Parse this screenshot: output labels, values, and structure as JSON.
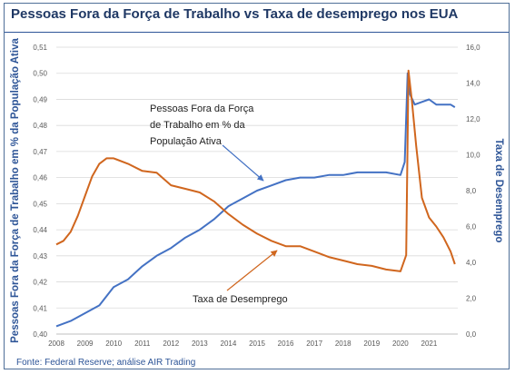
{
  "header": {
    "title": "Pessoas Fora da Força de Trabalho vs Taxa de desemprego nos EUA"
  },
  "footer": {
    "source": "Fonte: Federal Reserve; análise AIR Trading"
  },
  "colors": {
    "lfp_series": "#4472c4",
    "unemployment_series": "#d0661e",
    "title": "#1f3864",
    "axis_title": "#2e5597"
  },
  "chart_data": {
    "type": "line",
    "title": "Pessoas Fora da Força de Trabalho vs Taxa de desemprego nos EUA",
    "xlabel": "",
    "ylabel_left": "Pessoas Fora da Força de Trabalho em % da População Ativa",
    "ylabel_right": "Taxa de Desemprego",
    "xlim": [
      2008.0,
      2022.0
    ],
    "ylim_left": [
      0.4,
      0.51
    ],
    "ylim_right": [
      0.0,
      16.0
    ],
    "x_ticks": [
      "2008",
      "2009",
      "2010",
      "2011",
      "2012",
      "2013",
      "2014",
      "2015",
      "2016",
      "2017",
      "2018",
      "2019",
      "2020",
      "2021"
    ],
    "y_ticks_left": [
      "0,40",
      "0,41",
      "0,42",
      "0,43",
      "0,44",
      "0,45",
      "0,46",
      "0,47",
      "0,48",
      "0,49",
      "0,50",
      "0,51"
    ],
    "y_ticks_right": [
      "0,0",
      "2,0",
      "4,0",
      "6,0",
      "8,0",
      "10,0",
      "12,0",
      "14,0",
      "16,0"
    ],
    "grid": "horizontal",
    "legend": "none",
    "annotations": [
      {
        "text": [
          "Pessoas Fora da Força",
          "de Trabalho em % da",
          "População Ativa"
        ],
        "series": "lfp"
      },
      {
        "text": [
          "Taxa de Desemprego"
        ],
        "series": "unemployment"
      }
    ],
    "series": [
      {
        "id": "lfp",
        "axis": "left",
        "x": [
          2008.0,
          2008.5,
          2009.0,
          2009.5,
          2010.0,
          2010.5,
          2011.0,
          2011.5,
          2012.0,
          2012.5,
          2013.0,
          2013.5,
          2014.0,
          2014.5,
          2015.0,
          2015.5,
          2016.0,
          2016.5,
          2017.0,
          2017.5,
          2018.0,
          2018.5,
          2019.0,
          2019.5,
          2020.0,
          2020.15,
          2020.25,
          2020.33,
          2020.5,
          2020.75,
          2021.0,
          2021.25,
          2021.5,
          2021.75,
          2021.9
        ],
        "values": [
          0.403,
          0.405,
          0.408,
          0.411,
          0.418,
          0.421,
          0.426,
          0.43,
          0.433,
          0.437,
          0.44,
          0.444,
          0.449,
          0.452,
          0.455,
          0.457,
          0.459,
          0.46,
          0.46,
          0.461,
          0.461,
          0.462,
          0.462,
          0.462,
          0.461,
          0.466,
          0.5,
          0.492,
          0.488,
          0.489,
          0.49,
          0.488,
          0.488,
          0.488,
          0.487
        ]
      },
      {
        "id": "unemployment",
        "axis": "right",
        "x": [
          2008.0,
          2008.25,
          2008.5,
          2008.75,
          2009.0,
          2009.25,
          2009.5,
          2009.75,
          2010.0,
          2010.5,
          2011.0,
          2011.5,
          2012.0,
          2012.5,
          2013.0,
          2013.5,
          2014.0,
          2014.5,
          2015.0,
          2015.5,
          2016.0,
          2016.5,
          2017.0,
          2017.5,
          2018.0,
          2018.5,
          2019.0,
          2019.5,
          2020.0,
          2020.2,
          2020.28,
          2020.4,
          2020.55,
          2020.75,
          2021.0,
          2021.25,
          2021.5,
          2021.75,
          2021.9
        ],
        "values": [
          5.0,
          5.2,
          5.7,
          6.6,
          7.7,
          8.8,
          9.5,
          9.8,
          9.8,
          9.5,
          9.1,
          9.0,
          8.3,
          8.1,
          7.9,
          7.4,
          6.7,
          6.1,
          5.6,
          5.2,
          4.9,
          4.9,
          4.6,
          4.3,
          4.1,
          3.9,
          3.8,
          3.6,
          3.5,
          4.4,
          14.7,
          13.0,
          10.5,
          7.6,
          6.5,
          6.0,
          5.4,
          4.6,
          3.9
        ]
      }
    ]
  }
}
